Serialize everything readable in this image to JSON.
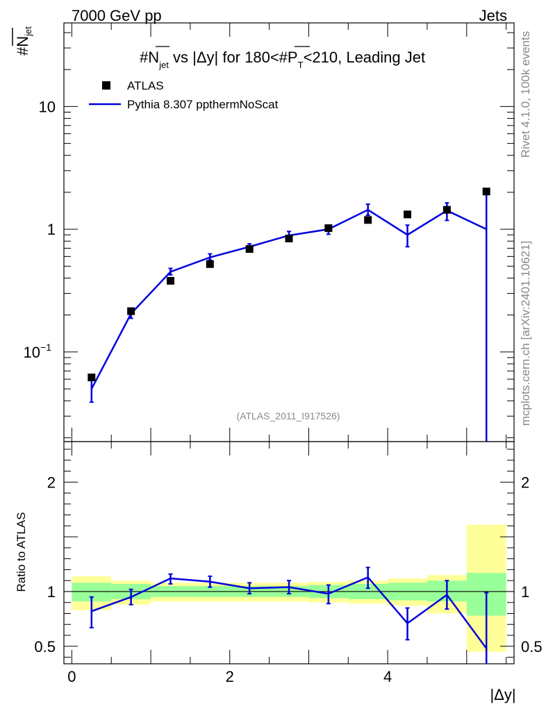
{
  "header": {
    "left": "7000 GeV pp",
    "right": "Jets"
  },
  "side": {
    "rivet": "Rivet 4.1.0,  100k events",
    "mcplots": "mcplots.cern.ch [arXiv:2401.10621]"
  },
  "watermark": "(ATLAS_2011_I917526)",
  "chart_data": {
    "type": "line",
    "title": {
      "p1": "#",
      "p2": "N",
      "p3": "jet",
      "p4": " vs |Δy| for 180<#",
      "p5": "P",
      "p6": "T",
      "p7": "<210, Leading Jet"
    },
    "ylabel": {
      "hash": "#",
      "n": "N",
      "sub": "jet"
    },
    "xlabel": "|Δy|",
    "ratio_ylabel": "Ratio to ATLAS",
    "legend": {
      "data_label": "ATLAS",
      "mc_label": "Pythia 8.307 ppthermNoScat",
      "position": "top-left"
    },
    "xlim": [
      -0.1,
      5.6
    ],
    "ylim": [
      0.0186,
      48
    ],
    "ratio_ylim": [
      0.34,
      2.37
    ],
    "y_ticks": [
      {
        "v": 0.1,
        "base": "10",
        "exp": "−1"
      },
      {
        "v": 1,
        "base": "1",
        "exp": ""
      },
      {
        "v": 10,
        "base": "10",
        "exp": ""
      }
    ],
    "ratio_ticks": [
      {
        "v": 0.5,
        "label": "0.5"
      },
      {
        "v": 1,
        "label": "1"
      },
      {
        "v": 2,
        "label": "2"
      }
    ],
    "x_ticks": [
      {
        "v": 0,
        "label": "0"
      },
      {
        "v": 2,
        "label": "2"
      },
      {
        "v": 4,
        "label": "4"
      }
    ],
    "data": {
      "name": "ATLAS",
      "x": [
        0.25,
        0.75,
        1.25,
        1.75,
        2.25,
        2.75,
        3.25,
        3.75,
        4.25,
        4.75,
        5.25
      ],
      "y": [
        0.062,
        0.215,
        0.38,
        0.52,
        0.69,
        0.84,
        1.02,
        1.19,
        1.32,
        1.44,
        2.03
      ],
      "band_inner": [
        [
          0.91,
          1.08
        ],
        [
          0.93,
          1.07
        ],
        [
          0.95,
          1.05
        ],
        [
          0.95,
          1.05
        ],
        [
          0.95,
          1.05
        ],
        [
          0.95,
          1.05
        ],
        [
          0.94,
          1.06
        ],
        [
          0.93,
          1.07
        ],
        [
          0.92,
          1.08
        ],
        [
          0.91,
          1.1
        ],
        [
          0.78,
          1.17
        ]
      ],
      "band_outer": [
        [
          0.83,
          1.14
        ],
        [
          0.88,
          1.1
        ],
        [
          0.91,
          1.08
        ],
        [
          0.91,
          1.08
        ],
        [
          0.91,
          1.08
        ],
        [
          0.91,
          1.08
        ],
        [
          0.9,
          1.09
        ],
        [
          0.89,
          1.1
        ],
        [
          0.87,
          1.12
        ],
        [
          0.8,
          1.15
        ],
        [
          0.45,
          1.61
        ]
      ]
    },
    "mc": {
      "name": "Pythia 8.307 ppthermNoScat",
      "color": "#0000dd",
      "x": [
        0.25,
        0.75,
        1.25,
        1.75,
        2.25,
        2.75,
        3.25,
        3.75,
        4.25,
        4.75,
        5.25
      ],
      "y": [
        0.05,
        0.205,
        0.45,
        0.59,
        0.72,
        0.89,
        1.0,
        1.44,
        0.9,
        1.42,
        1.0
      ],
      "err_lo": [
        0.039,
        0.188,
        0.425,
        0.56,
        0.69,
        0.83,
        0.91,
        1.3,
        0.72,
        1.18,
        0.0
      ],
      "err_hi": [
        0.059,
        0.222,
        0.48,
        0.63,
        0.76,
        0.96,
        1.08,
        1.6,
        1.08,
        1.64,
        2.0
      ],
      "ratio": [
        0.82,
        0.95,
        1.12,
        1.09,
        1.03,
        1.04,
        0.98,
        1.13,
        0.71,
        0.97,
        0.48
      ],
      "ratio_lo": [
        0.67,
        0.88,
        1.07,
        1.04,
        0.98,
        0.98,
        0.89,
        1.03,
        0.56,
        0.84,
        0.0
      ],
      "ratio_hi": [
        0.95,
        1.02,
        1.16,
        1.14,
        1.08,
        1.1,
        1.06,
        1.22,
        0.85,
        1.1,
        0.99
      ]
    }
  }
}
